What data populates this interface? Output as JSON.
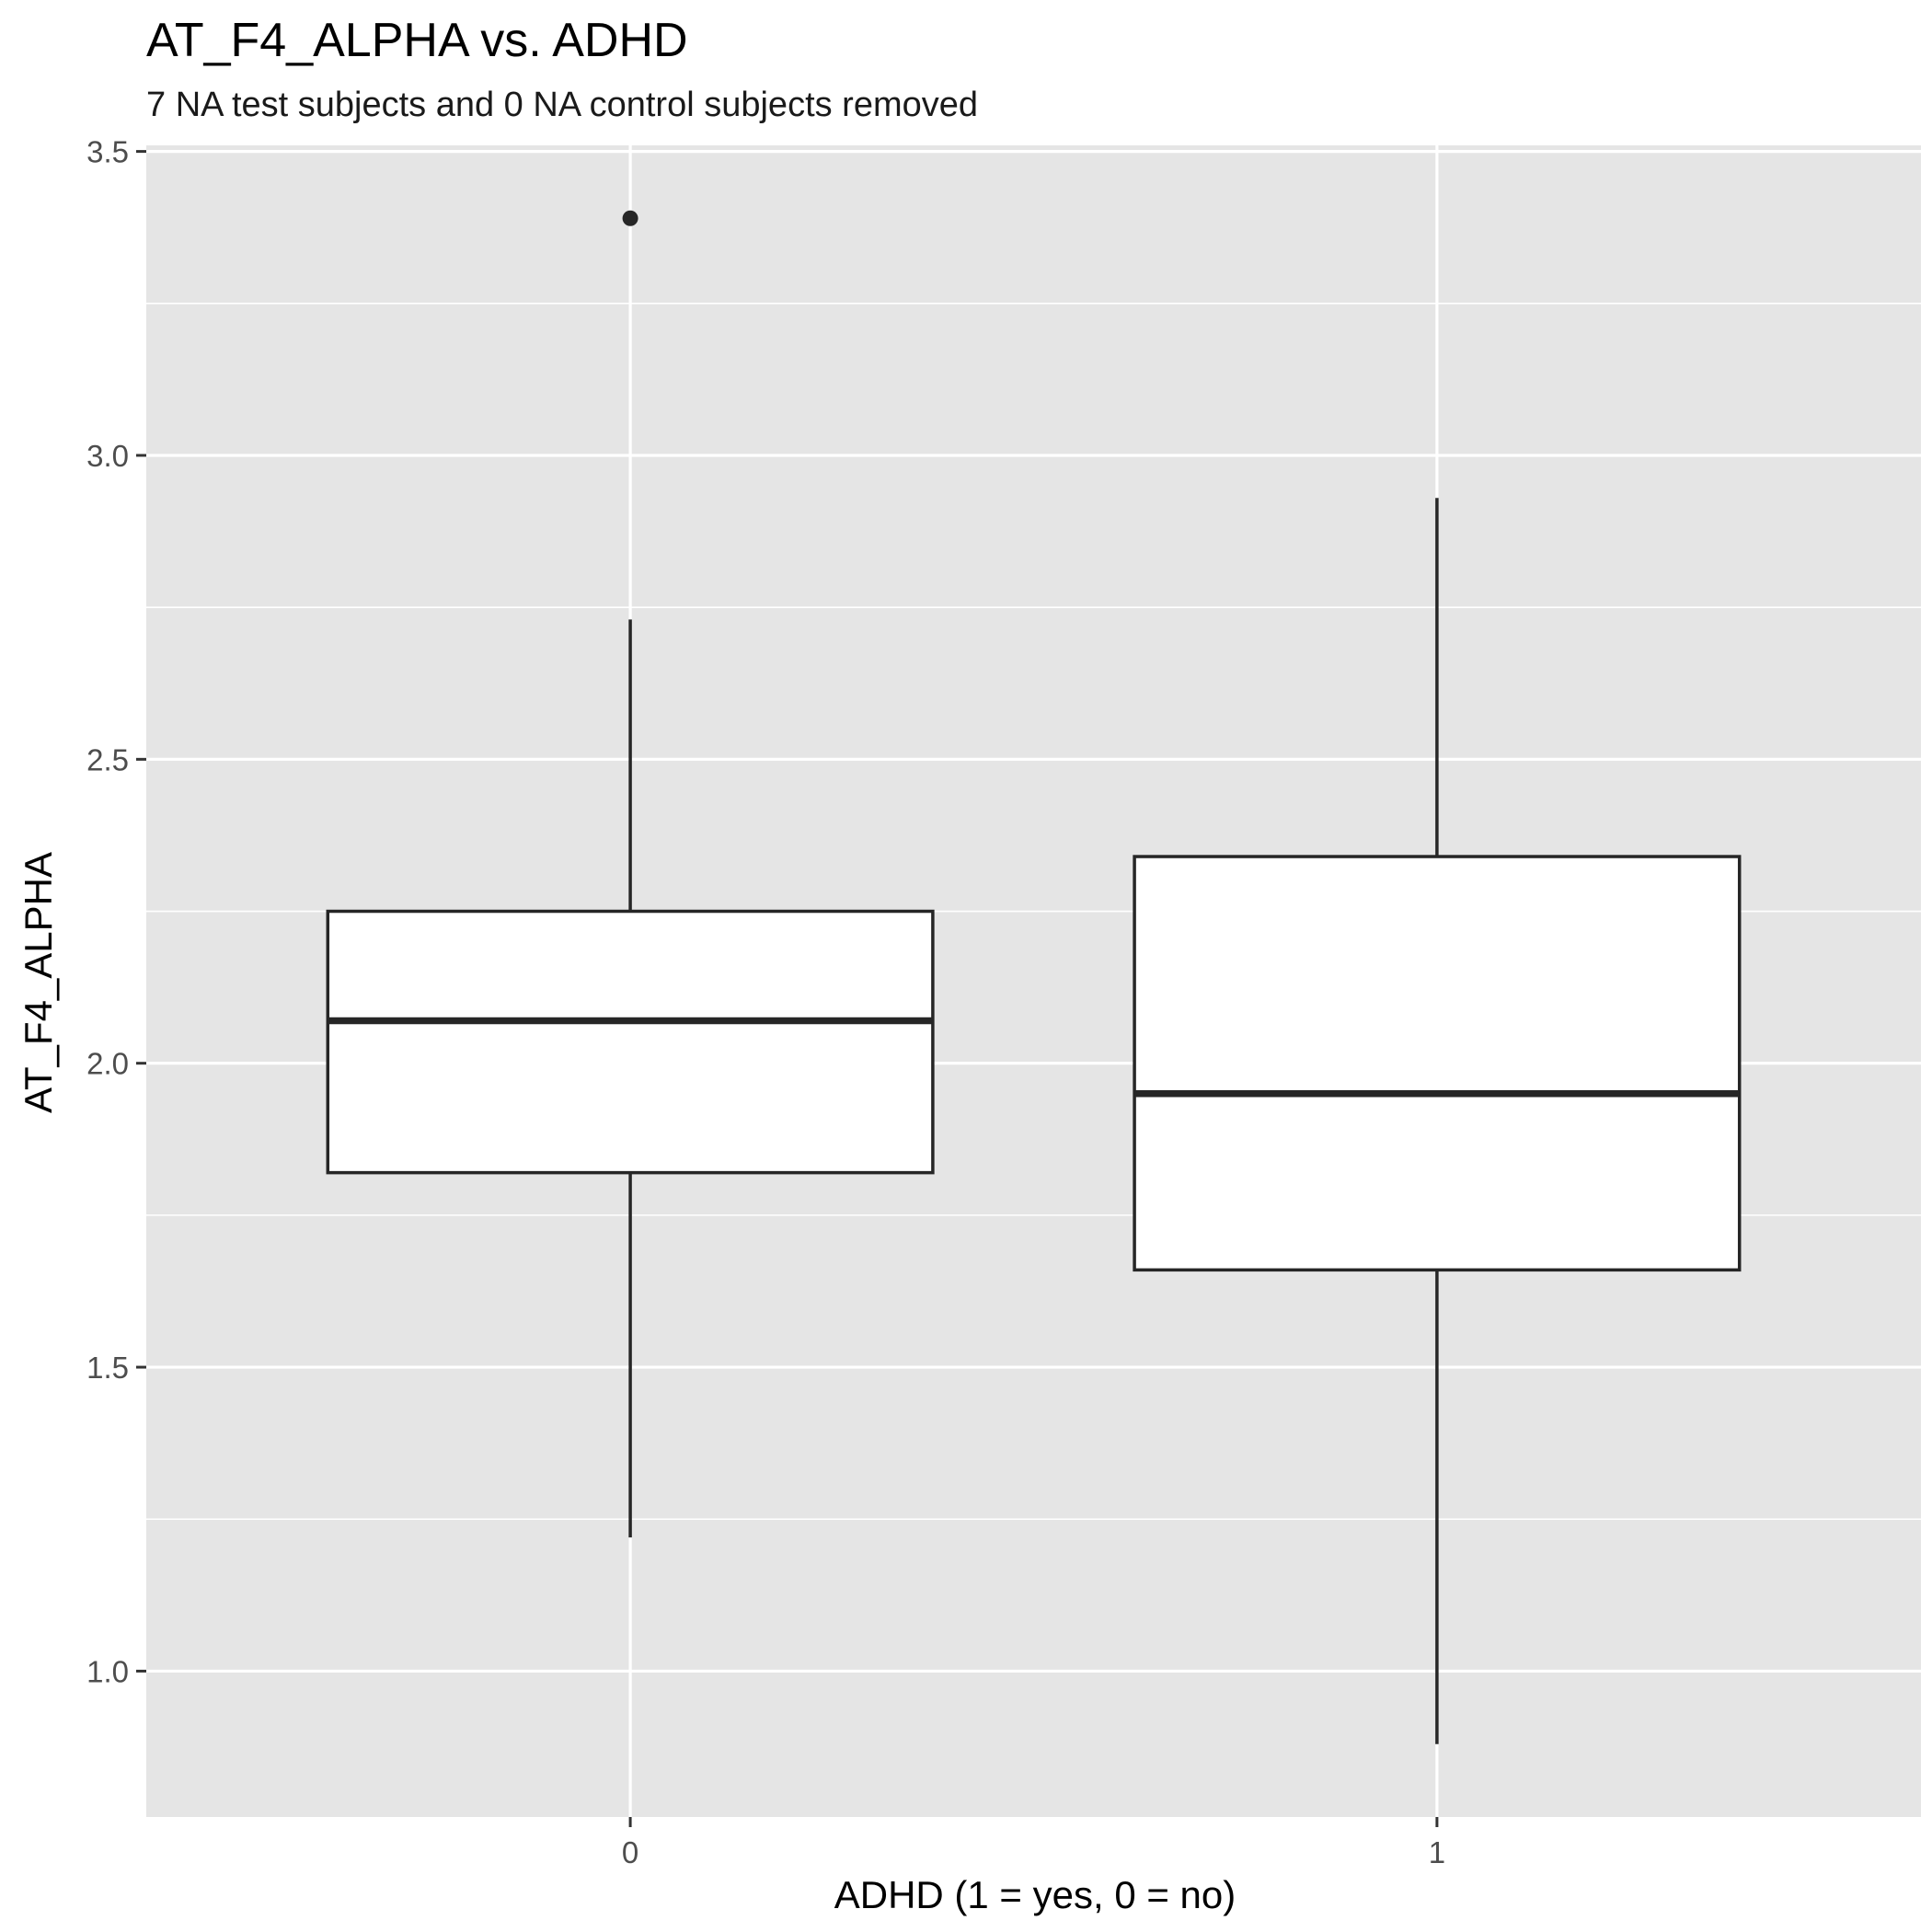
{
  "chart_data": {
    "type": "boxplot",
    "title": "AT_F4_ALPHA vs. ADHD",
    "subtitle": "7 NA test subjects and 0 NA control subjects removed",
    "xlabel": "ADHD (1 = yes, 0 = no)",
    "ylabel": "AT_F4_ALPHA",
    "categories": [
      "0",
      "1"
    ],
    "y_ticks": [
      "1.0",
      "1.5",
      "2.0",
      "2.5",
      "3.0",
      "3.5"
    ],
    "ylim": [
      0.76,
      3.51
    ],
    "grid": true,
    "boxes": [
      {
        "category": "0",
        "whisker_low": 1.22,
        "q1": 1.82,
        "median": 2.07,
        "q3": 2.25,
        "whisker_high": 2.73,
        "outliers": [
          3.39
        ]
      },
      {
        "category": "1",
        "whisker_low": 0.88,
        "q1": 1.66,
        "median": 1.95,
        "q3": 2.34,
        "whisker_high": 2.93,
        "outliers": []
      }
    ],
    "colors": {
      "panel": "#e5e5e5",
      "grid": "#ffffff",
      "box_fill": "#ffffff",
      "box_line": "#262626",
      "axis_text": "#4d4d4d"
    }
  }
}
